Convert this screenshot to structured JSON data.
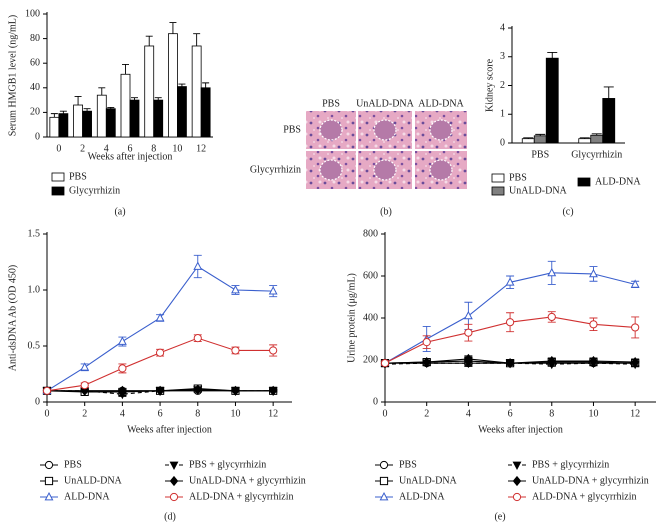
{
  "chart_data": [
    {
      "type": "bar",
      "label": "(a)",
      "y_label": "Serum HMGB1 level (ng/mL)",
      "x_label": "Weeks after injection",
      "categories": [
        "0",
        "2",
        "4",
        "6",
        "8",
        "10",
        "12"
      ],
      "series": [
        {
          "name": "PBS",
          "color": "#ffffff",
          "values": [
            16,
            26,
            34,
            51,
            74,
            84,
            74
          ],
          "errors": [
            3,
            7,
            6,
            8,
            8,
            9,
            10
          ]
        },
        {
          "name": "Glycyrrhizin",
          "color": "#000000",
          "values": [
            19,
            21,
            23,
            30,
            30,
            41,
            40
          ],
          "errors": [
            2,
            2,
            1,
            2,
            2,
            2,
            4
          ]
        }
      ],
      "ylim": [
        0,
        100
      ],
      "yticks": [
        0,
        20,
        40,
        60,
        80,
        100
      ]
    },
    {
      "type": "bar",
      "label": "(c)",
      "y_label": "Kidney score",
      "categories": [
        "PBS",
        "Glycyrrhizin"
      ],
      "series": [
        {
          "name": "PBS",
          "color": "#ffffff",
          "values": [
            0.15,
            0.15
          ],
          "errors": [
            0.03,
            0.03
          ]
        },
        {
          "name": "UnALD-DNA",
          "color": "#808080",
          "values": [
            0.25,
            0.27
          ],
          "errors": [
            0.05,
            0.05
          ]
        },
        {
          "name": "ALD-DNA",
          "color": "#000000",
          "values": [
            2.95,
            1.55
          ],
          "errors": [
            0.2,
            0.4
          ]
        }
      ],
      "ylim": [
        0,
        4
      ],
      "yticks": [
        0,
        1,
        2,
        3,
        4
      ]
    },
    {
      "type": "line",
      "label": "(d)",
      "y_label": "Anti-dsDNA Ab (OD 450)",
      "x_label": "Weeks after injection",
      "x": [
        0,
        2,
        4,
        6,
        8,
        10,
        12
      ],
      "series": [
        {
          "name": "PBS",
          "color": "#000000",
          "marker": "circle",
          "filled": false,
          "dashed": false,
          "values": [
            0.1,
            0.1,
            0.1,
            0.1,
            0.1,
            0.1,
            0.1
          ],
          "errors": [
            0.01,
            0.01,
            0.01,
            0.01,
            0.01,
            0.01,
            0.01
          ]
        },
        {
          "name": "UnALD-DNA",
          "color": "#000000",
          "marker": "square",
          "filled": false,
          "dashed": false,
          "values": [
            0.1,
            0.09,
            0.09,
            0.1,
            0.12,
            0.1,
            0.1
          ],
          "errors": [
            0.01,
            0.01,
            0.02,
            0.01,
            0.02,
            0.01,
            0.01
          ]
        },
        {
          "name": "ALD-DNA",
          "color": "#3a5fcd",
          "marker": "triangle",
          "filled": false,
          "dashed": false,
          "values": [
            0.1,
            0.31,
            0.54,
            0.75,
            1.21,
            1.0,
            0.99
          ],
          "errors": [
            0.01,
            0.03,
            0.04,
            0.03,
            0.1,
            0.04,
            0.05
          ]
        },
        {
          "name": "PBS + glycyrrhizin",
          "color": "#000000",
          "marker": "triangle-down",
          "filled": true,
          "dashed": true,
          "values": [
            0.1,
            0.1,
            0.07,
            0.1,
            0.11,
            0.1,
            0.1
          ],
          "errors": [
            0.01,
            0.01,
            0.02,
            0.01,
            0.01,
            0.01,
            0.01
          ]
        },
        {
          "name": "UnALD-DNA + glycyrrhizin",
          "color": "#000000",
          "marker": "diamond",
          "filled": true,
          "dashed": false,
          "values": [
            0.1,
            0.1,
            0.1,
            0.1,
            0.11,
            0.1,
            0.1
          ],
          "errors": [
            0.01,
            0.01,
            0.01,
            0.01,
            0.01,
            0.01,
            0.01
          ]
        },
        {
          "name": "ALD-DNA + glycyrrhizin",
          "color": "#d03030",
          "marker": "circle",
          "filled": false,
          "dashed": false,
          "values": [
            0.1,
            0.15,
            0.3,
            0.44,
            0.57,
            0.46,
            0.46
          ],
          "errors": [
            0.01,
            0.02,
            0.04,
            0.03,
            0.03,
            0.03,
            0.05
          ]
        }
      ],
      "xlim": [
        0,
        13
      ],
      "xticks": [
        0,
        2,
        4,
        6,
        8,
        10,
        12
      ],
      "ylim": [
        0,
        1.5
      ],
      "yticks": [
        0,
        0.5,
        {
          "value": 1,
          "label": "1.0"
        },
        1.5
      ]
    },
    {
      "type": "line",
      "label": "(e)",
      "y_label": "Urine protein (μg/mL)",
      "x_label": "Weeks after injection",
      "x": [
        0,
        2,
        4,
        6,
        8,
        10,
        12
      ],
      "series": [
        {
          "name": "PBS",
          "color": "#000000",
          "marker": "circle",
          "filled": false,
          "dashed": false,
          "values": [
            185,
            185,
            185,
            185,
            185,
            185,
            185
          ],
          "errors": [
            10,
            10,
            15,
            10,
            10,
            10,
            10
          ]
        },
        {
          "name": "UnALD-DNA",
          "color": "#000000",
          "marker": "square",
          "filled": false,
          "dashed": false,
          "values": [
            185,
            190,
            195,
            185,
            190,
            190,
            185
          ],
          "errors": [
            10,
            15,
            20,
            10,
            15,
            15,
            15
          ]
        },
        {
          "name": "ALD-DNA",
          "color": "#3a5fcd",
          "marker": "triangle",
          "filled": false,
          "dashed": false,
          "values": [
            185,
            300,
            410,
            570,
            615,
            610,
            560
          ],
          "errors": [
            10,
            60,
            65,
            30,
            55,
            35,
            15
          ]
        },
        {
          "name": "PBS + glycyrrhizin",
          "color": "#000000",
          "marker": "triangle-down",
          "filled": true,
          "dashed": true,
          "values": [
            180,
            185,
            185,
            185,
            180,
            185,
            180
          ],
          "errors": [
            10,
            10,
            15,
            10,
            10,
            10,
            10
          ]
        },
        {
          "name": "UnALD-DNA + glycyrrhizin",
          "color": "#000000",
          "marker": "diamond",
          "filled": true,
          "dashed": false,
          "values": [
            185,
            190,
            205,
            185,
            195,
            195,
            190
          ],
          "errors": [
            10,
            10,
            15,
            10,
            15,
            15,
            15
          ]
        },
        {
          "name": "ALD-DNA + glycyrrhizin",
          "color": "#d03030",
          "marker": "circle",
          "filled": false,
          "dashed": false,
          "values": [
            185,
            285,
            330,
            380,
            405,
            370,
            355
          ],
          "errors": [
            10,
            30,
            40,
            45,
            25,
            30,
            50
          ]
        }
      ],
      "xlim": [
        0,
        13
      ],
      "xticks": [
        0,
        2,
        4,
        6,
        8,
        10,
        12
      ],
      "ylim": [
        0,
        800
      ],
      "yticks": [
        0,
        200,
        400,
        600,
        800
      ]
    }
  ],
  "image_panel": {
    "label": "(b)",
    "column_labels": [
      "PBS",
      "UnALD-DNA",
      "ALD-DNA"
    ],
    "row_labels": [
      "PBS",
      "Glycyrrhizin"
    ]
  }
}
